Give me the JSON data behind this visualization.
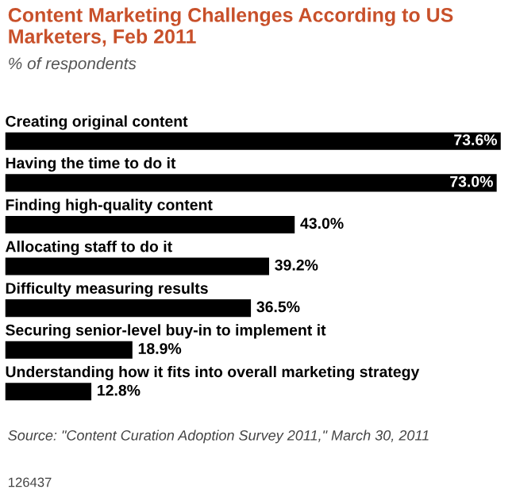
{
  "chart_data": {
    "type": "bar",
    "orientation": "horizontal",
    "title": "Content Marketing Challenges According to US Marketers, Feb 2011",
    "subtitle": "% of respondents",
    "categories": [
      "Creating original content",
      "Having the time to do it",
      "Finding high-quality content",
      "Allocating staff to do it",
      "Difficulty measuring results",
      "Securing senior-level buy-in to implement it",
      "Understanding how it fits into overall marketing strategy"
    ],
    "values": [
      73.6,
      73.0,
      43.0,
      39.2,
      36.5,
      18.9,
      12.8
    ],
    "value_labels": [
      "73.6%",
      "73.0%",
      "43.0%",
      "39.2%",
      "36.5%",
      "18.9%",
      "12.8%"
    ],
    "color": "#000000",
    "annotations": [
      "Source: \"Content Curation Adoption Survey 2011,\" March 30, 2011",
      "126437"
    ]
  }
}
